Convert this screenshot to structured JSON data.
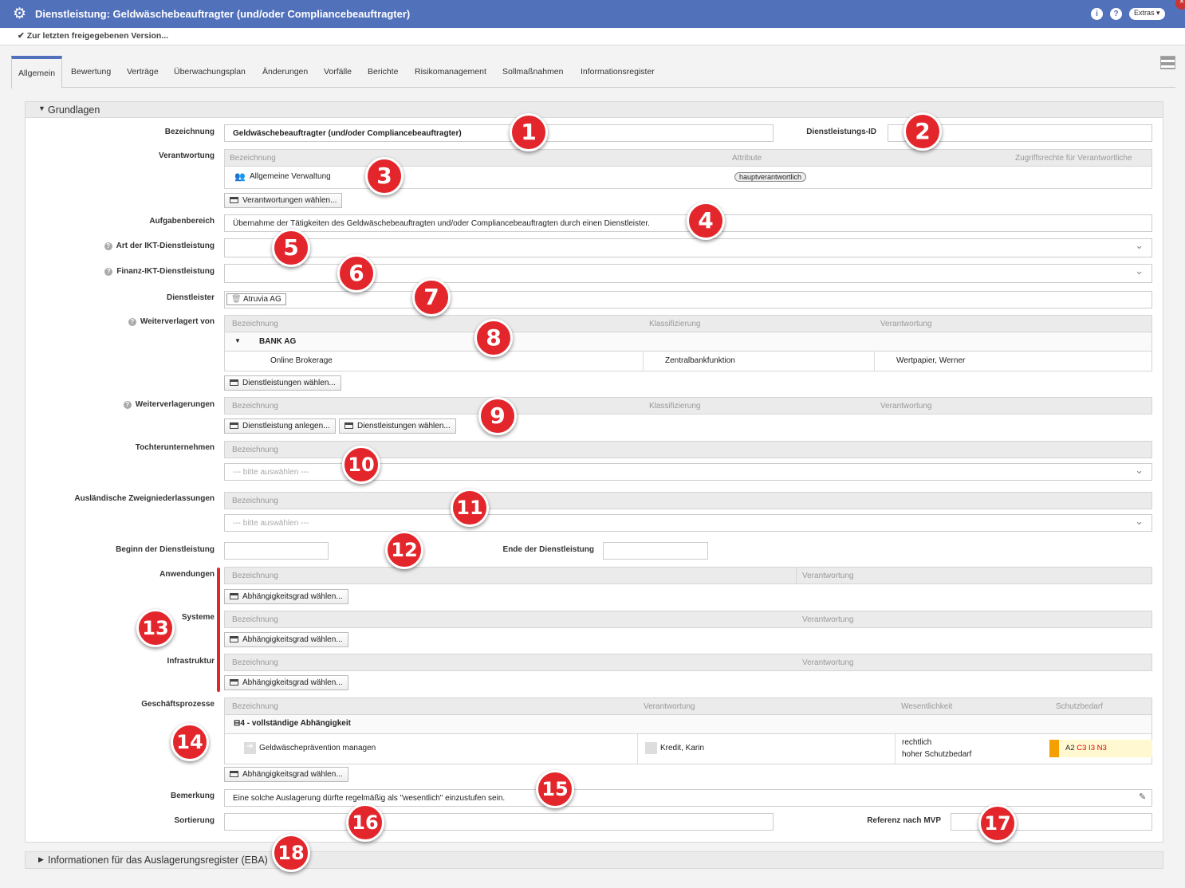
{
  "window": {
    "title": "Dienstleistung: Geldwäschebeauftragter (und/oder Compliancebeauftragter)",
    "info": "i",
    "help": "?",
    "extras": "Extras ▾",
    "close": "×"
  },
  "subbar": {
    "link": "Zur letzten freigegebenen Version..."
  },
  "tabs": [
    "Allgemein",
    "Bewertung",
    "Verträge",
    "Überwachungsplan",
    "Änderungen",
    "Vorfälle",
    "Berichte",
    "Risikomanagement",
    "Sollmaßnahmen",
    "Informationsregister"
  ],
  "section": {
    "title": "Grundlagen",
    "collapsed_title": "Informationen für das Auslagerungsregister (EBA)"
  },
  "form": {
    "bezeichnung": {
      "label": "Bezeichnung",
      "value": "Geldwäschebeauftragter (und/oder Compliancebeauftragter)"
    },
    "dl_id": {
      "label": "Dienstleistungs-ID",
      "value": ""
    },
    "verantwortung": {
      "label": "Verantwortung",
      "cols": [
        "Bezeichnung",
        "Attribute",
        "Zugriffsrechte für Verantwortliche"
      ],
      "row": {
        "name": "Allgemeine Verwaltung",
        "attr": "hauptverantwortlich"
      },
      "button": "Verantwortungen wählen..."
    },
    "aufgabenbereich": {
      "label": "Aufgabenbereich",
      "value": "Übernahme der Tätigkeiten des Geldwäschebeauftragten und/oder Compliancebeauftragten durch einen Dienstleister."
    },
    "art_ikt": {
      "label": "Art der IKT-Dienstleistung",
      "value": ""
    },
    "finanz_ikt": {
      "label": "Finanz-IKT-Dienstleistung",
      "value": ""
    },
    "dienstleister": {
      "label": "Dienstleister",
      "value": "Atruvia AG"
    },
    "weiterverlagert": {
      "label": "Weiterverlagert von",
      "cols": [
        "Bezeichnung",
        "Klassifizierung",
        "Verantwortung"
      ],
      "group": "BANK AG",
      "row": {
        "name": "Online Brokerage",
        "klass": "Zentralbankfunktion",
        "verant": "Wertpapier, Werner"
      },
      "button": "Dienstleistungen wählen..."
    },
    "weiterverlagerungen": {
      "label": "Weiterverlagerungen",
      "cols": [
        "Bezeichnung",
        "Klassifizierung",
        "Verantwortung"
      ],
      "button1": "Dienstleistung anlegen...",
      "button2": "Dienstleistungen wählen..."
    },
    "tochter": {
      "label": "Tochterunternehmen",
      "col": "Bezeichnung",
      "placeholder": "--- bitte auswählen ---"
    },
    "zweig": {
      "label": "Ausländische Zweigniederlassungen",
      "col": "Bezeichnung",
      "placeholder": "--- bitte auswählen ---"
    },
    "beginn": {
      "label": "Beginn der Dienstleistung",
      "value": ""
    },
    "ende": {
      "label": "Ende der Dienstleistung",
      "value": ""
    },
    "anwendungen": {
      "label": "Anwendungen",
      "cols": [
        "Bezeichnung",
        "Verantwortung"
      ],
      "button": "Abhängigkeitsgrad wählen..."
    },
    "systeme": {
      "label": "Systeme",
      "cols": [
        "Bezeichnung",
        "Verantwortung"
      ],
      "button": "Abhängigkeitsgrad wählen..."
    },
    "infrastruktur": {
      "label": "Infrastruktur",
      "cols": [
        "Bezeichnung",
        "Verantwortung"
      ],
      "button": "Abhängigkeitsgrad wählen..."
    },
    "geschaeft": {
      "label": "Geschäftsprozesse",
      "cols": [
        "Bezeichnung",
        "Verantwortung",
        "Wesentlichkeit",
        "Schutzbedarf"
      ],
      "group": "4 - vollständige Abhängigkeit",
      "row": {
        "name": "Geldwäscheprävention managen",
        "verant": "Kredit, Karin",
        "wes1": "rechtlich",
        "wes2": "hoher Schutzbedarf",
        "sb_a": "A2",
        "sb_rest": "C3 I3 N3"
      },
      "button": "Abhängigkeitsgrad wählen..."
    },
    "bemerkung": {
      "label": "Bemerkung",
      "value": "Eine solche Auslagerung dürfte regelmäßig als \"wesentlich\" einzustufen sein."
    },
    "sortierung": {
      "label": "Sortierung",
      "value": ""
    },
    "referenz": {
      "label": "Referenz nach MVP",
      "value": ""
    }
  },
  "markers": [
    "1",
    "2",
    "3",
    "4",
    "5",
    "6",
    "7",
    "8",
    "9",
    "10",
    "11",
    "12",
    "13",
    "14",
    "15",
    "16",
    "17",
    "18"
  ],
  "colors": {
    "titlebar": "#5271bb",
    "marker": "#e3262b",
    "schutzbedarf_bar": "#f5a000"
  }
}
